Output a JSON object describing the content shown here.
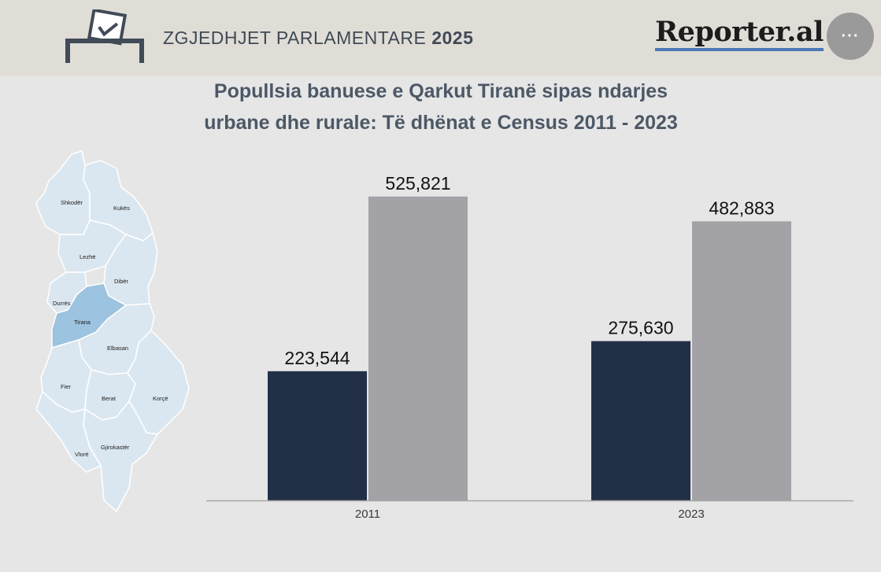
{
  "header": {
    "title_regular": "ZGJEDHJET PARLAMENTARE",
    "title_bold": "2025",
    "logo": "Reporter.al",
    "menu_label": "···",
    "ballot_icon": "ballot-box-icon",
    "menu_icon": "more-dots-icon"
  },
  "map": {
    "highlight_color": "#9cc3df",
    "base_color": "#dbe7f0",
    "regions": [
      "Shkodër",
      "Kukës",
      "Lezhë",
      "Dibër",
      "Durrës",
      "Tirana",
      "Elbasan",
      "Fier",
      "Berat",
      "Korçë",
      "Vlorë",
      "Gjirokastër"
    ],
    "highlighted": "Tirana"
  },
  "chart_data": {
    "type": "bar",
    "title_line1": "Popullsia banuese e Qarkut Tiranë sipas ndarjes",
    "title_line2": "urbane dhe rurale: Të dhënat e Census 2011 - 2023",
    "categories": [
      "2011",
      "2023"
    ],
    "series": [
      {
        "values": [
          223544,
          275630
        ],
        "color": "#223047"
      },
      {
        "values": [
          525821,
          482883
        ],
        "color": "#a3a2a6"
      }
    ],
    "data_labels": [
      [
        "223,544",
        "275,630"
      ],
      [
        "525,821",
        "482,883"
      ]
    ],
    "ylim": [
      0,
      580000
    ],
    "grid": false,
    "legend": "none"
  }
}
